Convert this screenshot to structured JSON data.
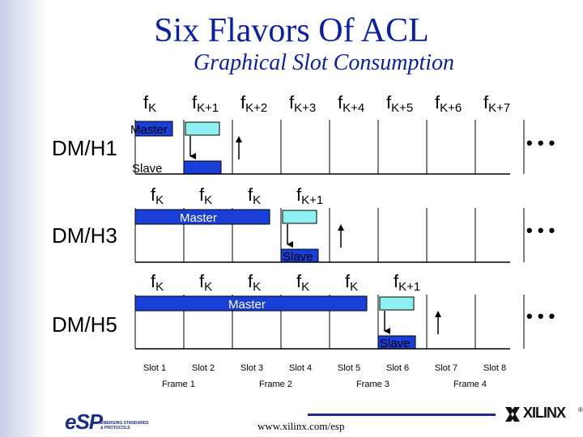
{
  "title": "Six Flavors Of ACL",
  "subtitle": "Graphical Slot Consumption",
  "header_freqs": [
    {
      "base": "f",
      "sub": "K"
    },
    {
      "base": "f",
      "sub": "K+1"
    },
    {
      "base": "f",
      "sub": "K+2"
    },
    {
      "base": "f",
      "sub": "K+3"
    },
    {
      "base": "f",
      "sub": "K+4"
    },
    {
      "base": "f",
      "sub": "K+5"
    },
    {
      "base": "f",
      "sub": "K+6"
    },
    {
      "base": "f",
      "sub": "K+7"
    }
  ],
  "rows": [
    {
      "name": "DM/H1",
      "slots": 1,
      "master_label": "Master",
      "slave_label": "Slave",
      "freqs": []
    },
    {
      "name": "DM/H3",
      "slots": 3,
      "master_label": "Master",
      "slave_label": "Slave",
      "freqs": [
        {
          "base": "f",
          "sub": "K"
        },
        {
          "base": "f",
          "sub": "K"
        },
        {
          "base": "f",
          "sub": "K"
        },
        {
          "base": "f",
          "sub": "K+1"
        }
      ]
    },
    {
      "name": "DM/H5",
      "slots": 5,
      "master_label": "Master",
      "slave_label": "Slave",
      "freqs": [
        {
          "base": "f",
          "sub": "K"
        },
        {
          "base": "f",
          "sub": "K"
        },
        {
          "base": "f",
          "sub": "K"
        },
        {
          "base": "f",
          "sub": "K"
        },
        {
          "base": "f",
          "sub": "K"
        },
        {
          "base": "f",
          "sub": "K+1"
        }
      ]
    }
  ],
  "continuation": "• • •",
  "slot_labels": [
    "Slot 1",
    "Slot 2",
    "Slot 3",
    "Slot 4",
    "Slot 5",
    "Slot 6",
    "Slot 7",
    "Slot 8"
  ],
  "frame_labels": [
    "Frame 1",
    "Frame 2",
    "Frame 3",
    "Frame 4"
  ],
  "footer_url": "www.xilinx.com/esp",
  "logos": {
    "esp": "eSP",
    "esp_tagline_1": "EMERGING STANDARDS",
    "esp_tagline_2": "& PROTOCOLS",
    "xilinx": "XILINX",
    "registered": "®"
  },
  "colors": {
    "title": "#0b1fa6",
    "master_fill": "#1a3fd8",
    "slave_fill": "#1a3fd8",
    "ghost_fill": "#8ff0f2",
    "line": "#000000"
  }
}
